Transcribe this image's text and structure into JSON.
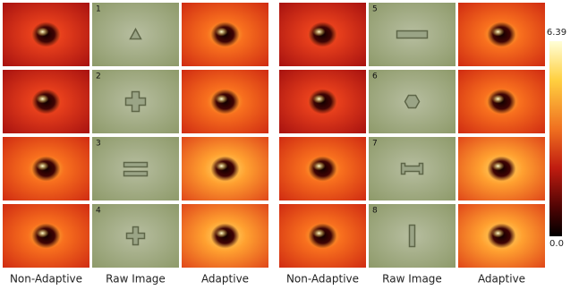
{
  "panels": [
    {
      "rows": [
        {
          "number": "1"
        },
        {
          "number": "2"
        },
        {
          "number": "3"
        },
        {
          "number": "4"
        }
      ],
      "column_labels": [
        "Non-Adaptive",
        "Raw Image",
        "Adaptive"
      ]
    },
    {
      "rows": [
        {
          "number": "5"
        },
        {
          "number": "6"
        },
        {
          "number": "7"
        },
        {
          "number": "8"
        }
      ],
      "column_labels": [
        "Non-Adaptive",
        "Raw Image",
        "Adaptive"
      ]
    }
  ],
  "colorbar": {
    "max_label": "6.39",
    "min_label": "0.0"
  }
}
